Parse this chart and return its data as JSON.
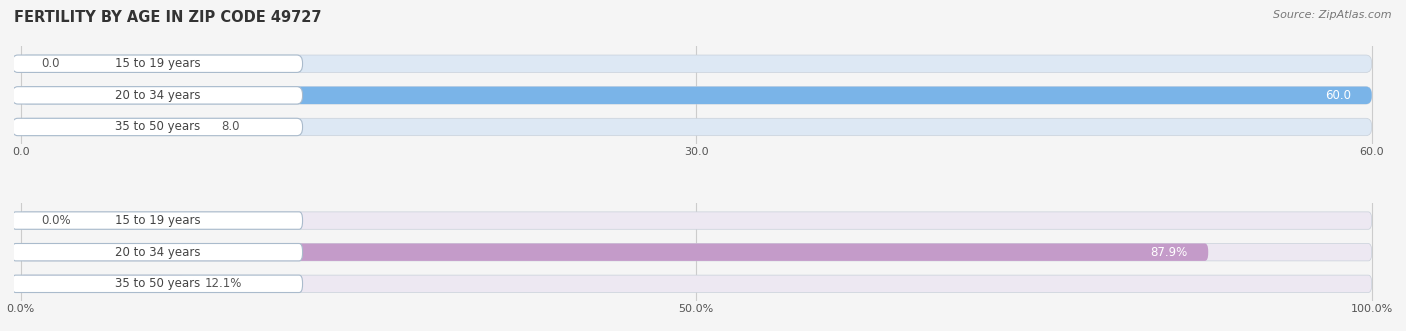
{
  "title": "FERTILITY BY AGE IN ZIP CODE 49727",
  "source": "Source: ZipAtlas.com",
  "top_chart": {
    "categories": [
      "15 to 19 years",
      "20 to 34 years",
      "35 to 50 years"
    ],
    "values": [
      0.0,
      60.0,
      8.0
    ],
    "xlim": [
      0,
      60
    ],
    "xticks": [
      0.0,
      30.0,
      60.0
    ],
    "xtick_labels": [
      "0.0",
      "30.0",
      "60.0"
    ],
    "bar_color": "#7ab4e8",
    "bar_bg_color": "#dde8f4",
    "label_inside_color": "#ffffff",
    "label_outside_color": "#555555",
    "value_labels": [
      "0.0",
      "60.0",
      "8.0"
    ],
    "inside_threshold_pct": 0.85
  },
  "bottom_chart": {
    "categories": [
      "15 to 19 years",
      "20 to 34 years",
      "35 to 50 years"
    ],
    "values": [
      0.0,
      87.9,
      12.1
    ],
    "xlim": [
      0,
      100
    ],
    "xticks": [
      0.0,
      50.0,
      100.0
    ],
    "xtick_labels": [
      "0.0%",
      "50.0%",
      "100.0%"
    ],
    "bar_color": "#c49bc9",
    "bar_bg_color": "#ede8f2",
    "label_inside_color": "#ffffff",
    "label_outside_color": "#555555",
    "value_labels": [
      "0.0%",
      "87.9%",
      "12.1%"
    ],
    "inside_threshold_pct": 0.85
  },
  "title_fontsize": 10.5,
  "source_fontsize": 8,
  "category_fontsize": 8.5,
  "value_fontsize": 8.5,
  "tick_fontsize": 8,
  "bar_height": 0.55,
  "background_color": "#f5f5f5",
  "grid_color": "#cccccc",
  "label_box_edge_color": "#aabbcc"
}
